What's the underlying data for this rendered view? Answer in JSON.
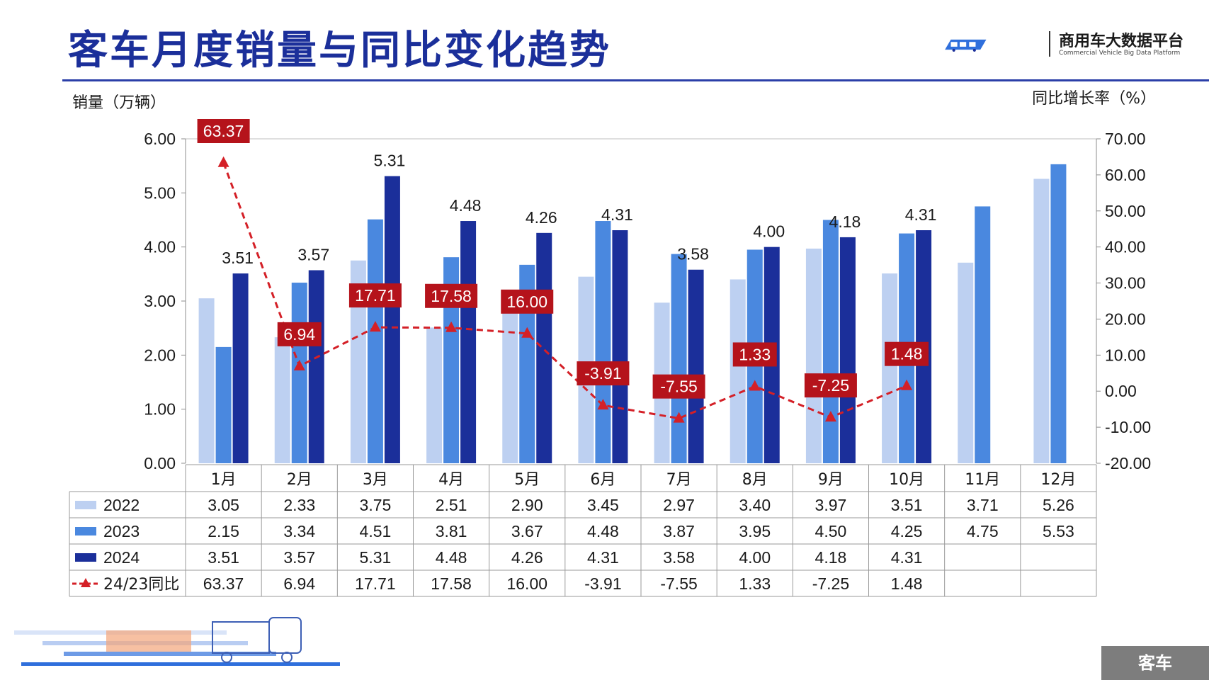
{
  "header": {
    "title": "客车月度销量与同比变化趋势",
    "logo_text": "商用车大数据平台",
    "logo_sub": "Commercial Vehicle Big Data Platform"
  },
  "footer": {
    "tag": "客车"
  },
  "colors": {
    "s2022": "#bdd0f1",
    "s2023": "#4a88df",
    "s2024": "#1b2f9a",
    "yoy": "#d42027",
    "yoy_box": "#b5131b",
    "title": "#1b2f9a"
  },
  "icons": {
    "logo": "truck-logo-icon",
    "truck": "truck-illustration-icon"
  },
  "chart_data": {
    "type": "bar",
    "ylabel_left": "销量（万辆）",
    "ylabel_right": "同比增长率（%）",
    "ylim_left": [
      0,
      6
    ],
    "ylim_right": [
      -20,
      70
    ],
    "yticks_left": [
      "0.00",
      "1.00",
      "2.00",
      "3.00",
      "4.00",
      "5.00",
      "6.00"
    ],
    "yticks_right": [
      "-20.00",
      "-10.00",
      "0.00",
      "10.00",
      "20.00",
      "30.00",
      "40.00",
      "50.00",
      "60.00",
      "70.00"
    ],
    "categories": [
      "1月",
      "2月",
      "3月",
      "4月",
      "5月",
      "6月",
      "7月",
      "8月",
      "9月",
      "10月",
      "11月",
      "12月"
    ],
    "series": [
      {
        "name": "2022",
        "values": [
          3.05,
          2.33,
          3.75,
          2.51,
          2.9,
          3.45,
          2.97,
          3.4,
          3.97,
          3.51,
          3.71,
          5.26
        ],
        "labels": [
          "3.05",
          "2.33",
          "3.75",
          "2.51",
          "2.90",
          "3.45",
          "2.97",
          "3.40",
          "3.97",
          "3.51",
          "3.71",
          "5.26"
        ]
      },
      {
        "name": "2023",
        "values": [
          2.15,
          3.34,
          4.51,
          3.81,
          3.67,
          4.48,
          3.87,
          3.95,
          4.5,
          4.25,
          4.75,
          5.53
        ],
        "labels": [
          "2.15",
          "3.34",
          "4.51",
          "3.81",
          "3.67",
          "4.48",
          "3.87",
          "3.95",
          "4.50",
          "4.25",
          "4.75",
          "5.53"
        ]
      },
      {
        "name": "2024",
        "values": [
          3.51,
          3.57,
          5.31,
          4.48,
          4.26,
          4.31,
          3.58,
          4.0,
          4.18,
          4.31,
          null,
          null
        ],
        "labels": [
          "3.51",
          "3.57",
          "5.31",
          "4.48",
          "4.26",
          "4.31",
          "3.58",
          "4.00",
          "4.18",
          "4.31",
          "",
          ""
        ]
      }
    ],
    "yoy": {
      "name": "24/23同比",
      "values": [
        63.37,
        6.94,
        17.71,
        17.58,
        16.0,
        -3.91,
        -7.55,
        1.33,
        -7.25,
        1.48,
        null,
        null
      ],
      "labels": [
        "63.37",
        "6.94",
        "17.71",
        "17.58",
        "16.00",
        "-3.91",
        "-7.55",
        "1.33",
        "-7.25",
        "1.48",
        "",
        ""
      ]
    },
    "legend": "data-table"
  }
}
